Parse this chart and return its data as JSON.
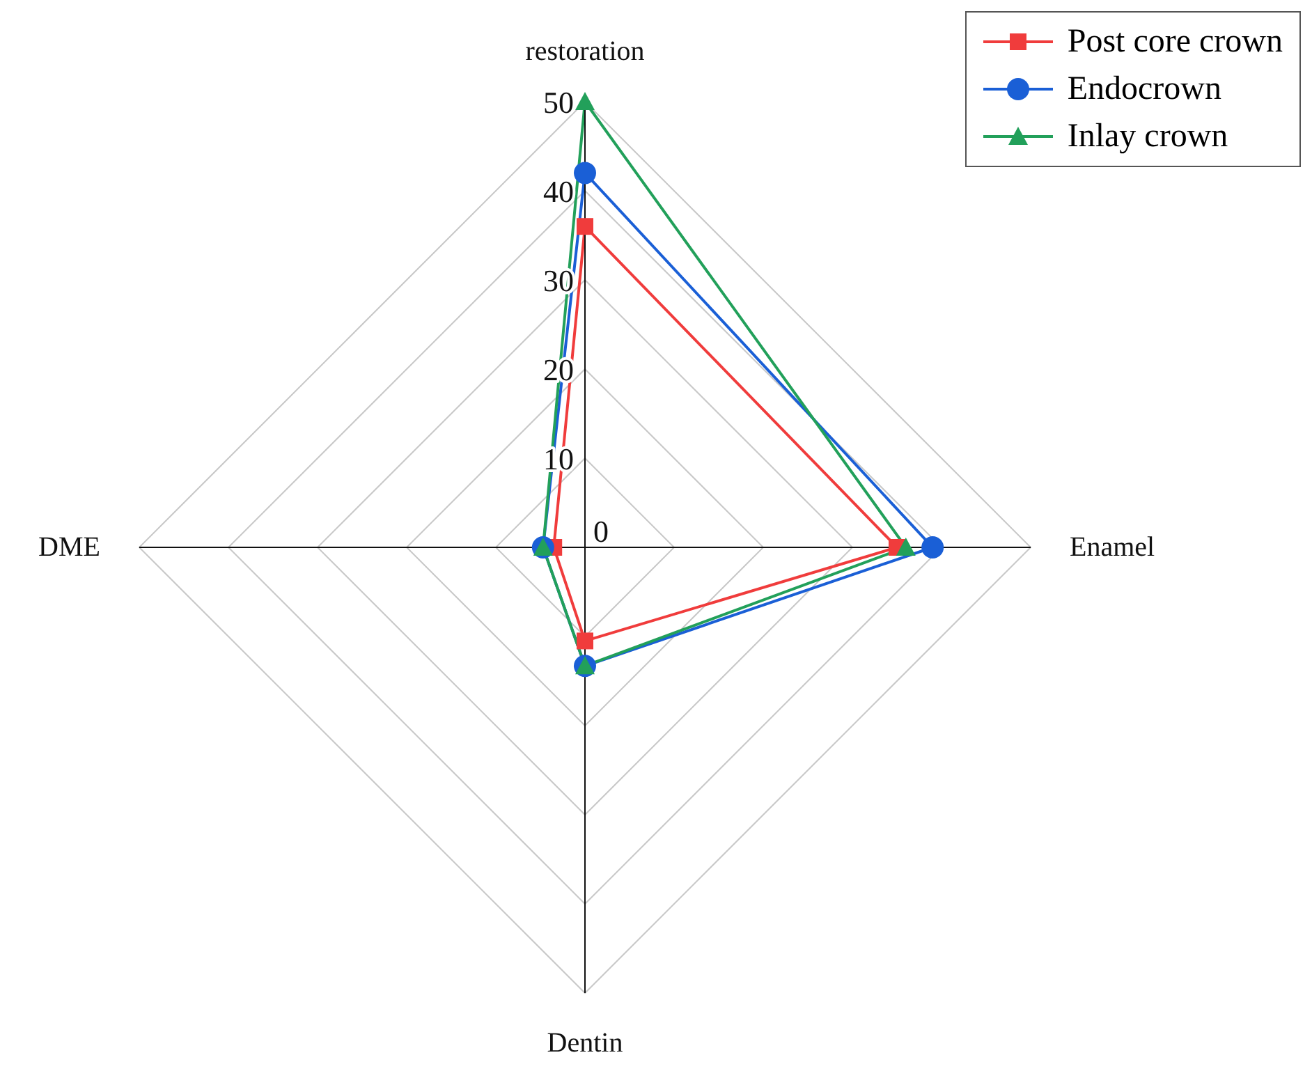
{
  "chart_data": {
    "type": "radar",
    "categories": [
      "restoration",
      "Enamel",
      "Dentin",
      "DME"
    ],
    "series": [
      {
        "name": "Post core crown",
        "color": "#f03c3c",
        "values": [
          36,
          35,
          10.5,
          3.5
        ],
        "marker": "square"
      },
      {
        "name": "Endocrown",
        "color": "#1a5fd6",
        "values": [
          42,
          39,
          13.3,
          4.7
        ],
        "marker": "circle"
      },
      {
        "name": "Inlay crown",
        "color": "#22a05a",
        "values": [
          50,
          36,
          13.3,
          4.7
        ],
        "marker": "triangle"
      }
    ],
    "ylim": [
      0,
      50
    ],
    "yticks": [
      0,
      10,
      20,
      30,
      40,
      50
    ],
    "grid": true,
    "legend": "top right"
  }
}
